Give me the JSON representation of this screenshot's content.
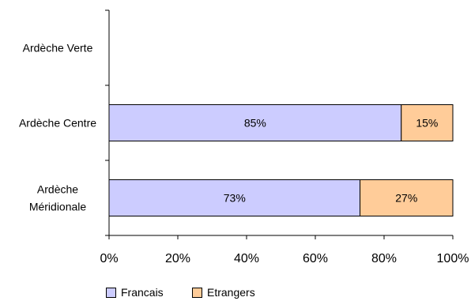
{
  "chart_data": {
    "type": "bar",
    "orientation": "horizontal",
    "stacked": true,
    "categories": [
      "Ardèche Verte",
      "Ardèche Centre",
      "Ardèche Méridionale"
    ],
    "category_lines": [
      [
        "Ardèche Verte"
      ],
      [
        "Ardèche Centre"
      ],
      [
        "Ardèche",
        "Méridionale"
      ]
    ],
    "series": [
      {
        "name": "Francais",
        "values": [
          null,
          85,
          73
        ],
        "labels": [
          "",
          "85%",
          "73%"
        ],
        "color": "#ccccff"
      },
      {
        "name": "Etrangers",
        "values": [
          null,
          15,
          27
        ],
        "labels": [
          "",
          "15%",
          "27%"
        ],
        "color": "#ffcc99"
      }
    ],
    "xlim": [
      0,
      100
    ],
    "xticks": [
      "0%",
      "20%",
      "40%",
      "60%",
      "80%",
      "100%"
    ],
    "grid": false,
    "legend": "bottom-left"
  }
}
